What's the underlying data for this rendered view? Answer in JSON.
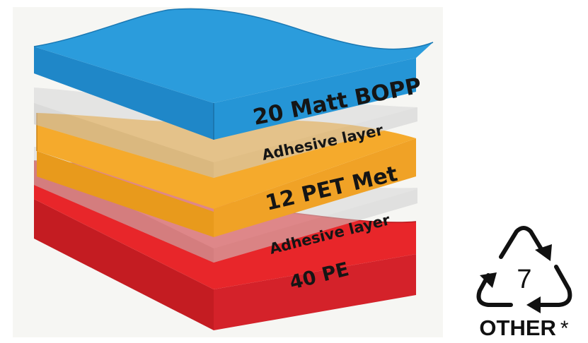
{
  "layers": [
    {
      "label": "20 Matt BOPP",
      "color": "#2b9cdc"
    },
    {
      "label": "Adhesive layer",
      "color": "#e3e3e3"
    },
    {
      "label": "12 PET Met",
      "color": "#f5aa2c"
    },
    {
      "label": "Adhesive layer",
      "color": "#e3e3e3"
    },
    {
      "label": "40 PE",
      "color": "#e8262a"
    }
  ],
  "recycling": {
    "number": "7",
    "caption": "OTHER",
    "footnote_mark": "*"
  }
}
